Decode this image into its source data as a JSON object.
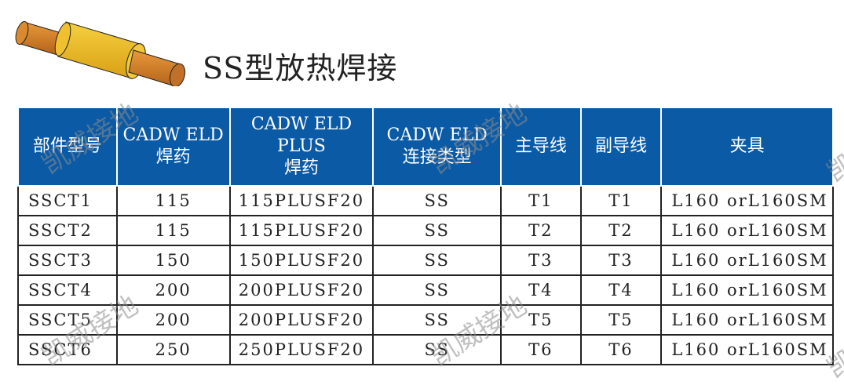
{
  "title": "SS型放热焊接",
  "watermark": "凯威接地",
  "colors": {
    "header_bg": "#0b5aa5",
    "header_text": "#ffffff",
    "sleeve": "#e8b820",
    "conductor": "#c9731e"
  },
  "table": {
    "headers": [
      {
        "lines": [
          "部件型号"
        ]
      },
      {
        "lines": [
          "CADW ELD",
          "焊药"
        ]
      },
      {
        "lines": [
          "CADW ELD",
          "PLUS",
          "焊药"
        ]
      },
      {
        "lines": [
          "CADW ELD",
          "连接类型"
        ]
      },
      {
        "lines": [
          "主导线"
        ]
      },
      {
        "lines": [
          "副导线"
        ]
      },
      {
        "lines": [
          "夹具"
        ]
      }
    ],
    "rows": [
      [
        "SSCT1",
        "115",
        "115PLUSF20",
        "SS",
        "T1",
        "T1",
        "L160 orL160SM"
      ],
      [
        "SSCT2",
        "115",
        "115PLUSF20",
        "SS",
        "T2",
        "T2",
        "L160 orL160SM"
      ],
      [
        "SSCT3",
        "150",
        "150PLUSF20",
        "SS",
        "T3",
        "T3",
        "L160 orL160SM"
      ],
      [
        "SSCT4",
        "200",
        "200PLUSF20",
        "SS",
        "T4",
        "T4",
        "L160 orL160SM"
      ],
      [
        "SSCT5",
        "200",
        "200PLUSF20",
        "SS",
        "T5",
        "T5",
        "L160 orL160SM"
      ],
      [
        "SSCT6",
        "250",
        "250PLUSF20",
        "SS",
        "T6",
        "T6",
        "L160 orL160SM"
      ]
    ]
  }
}
